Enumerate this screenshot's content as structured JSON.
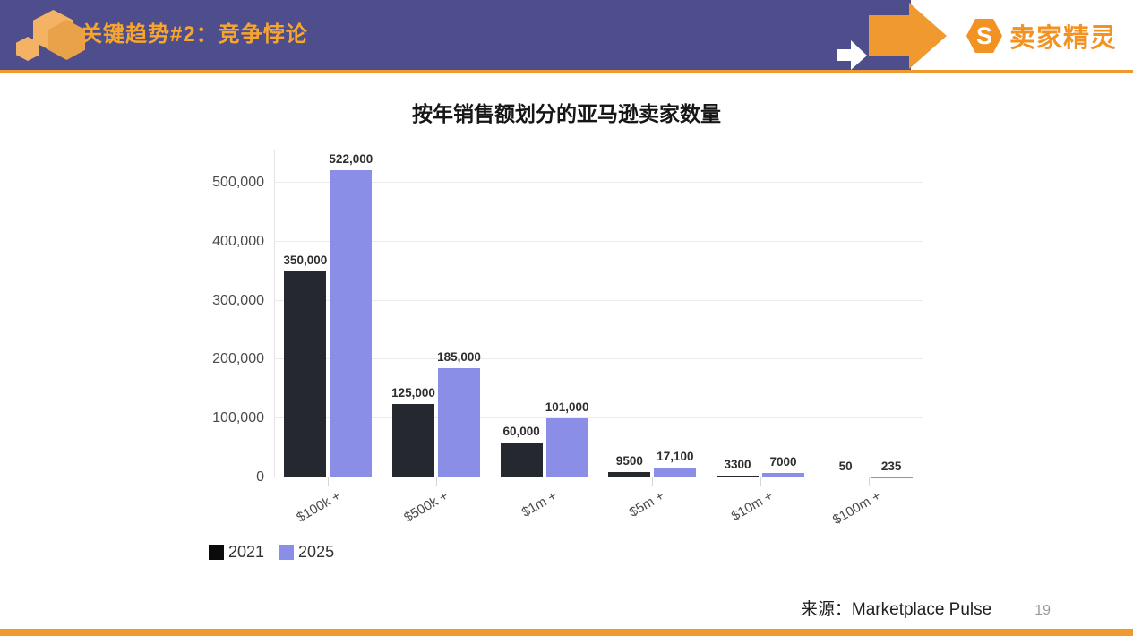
{
  "header": {
    "title": "关键趋势#2：竞争悖论",
    "brand_name": "卖家精灵",
    "brand_initial": "S",
    "colors": {
      "header_bg": "#4E4E8C",
      "accent_orange": "#F0992E",
      "title_orange": "#F8A52D",
      "brand_orange": "#F29222",
      "logo_hex_light": "#F4B364",
      "logo_hex_dark": "#E9A24A"
    }
  },
  "chart_data": {
    "type": "bar",
    "title": "按年销售额划分的亚马逊卖家数量",
    "categories": [
      "$100k +",
      "$500k +",
      "$1m +",
      "$5m +",
      "$10m +",
      "$100m +"
    ],
    "series": [
      {
        "name": "2021",
        "color": "#26282F",
        "legend_color": "#0B0B0B",
        "values": [
          350000,
          125000,
          60000,
          9500,
          3300,
          50
        ],
        "value_labels": [
          "350,000",
          "125,000",
          "60,000",
          "9500",
          "3300",
          "50"
        ]
      },
      {
        "name": "2025",
        "color": "#8B8EE6",
        "legend_color": "#8B8EE6",
        "values": [
          522000,
          185000,
          101000,
          17100,
          7000,
          235
        ],
        "value_labels": [
          "522,000",
          "185,000",
          "101,000",
          "17,100",
          "7000",
          "235"
        ]
      }
    ],
    "y_axis": {
      "ticks": [
        0,
        100000,
        200000,
        300000,
        400000,
        500000
      ],
      "tick_labels": [
        "0",
        "100,000",
        "200,000",
        "300,000",
        "400,000",
        "500,000"
      ],
      "range": [
        0,
        555000
      ]
    },
    "grid": true,
    "legend_position": "bottom-left",
    "bar_label_rotation_deg": -30
  },
  "footer": {
    "source": "来源：Marketplace Pulse",
    "page_number": "19"
  }
}
